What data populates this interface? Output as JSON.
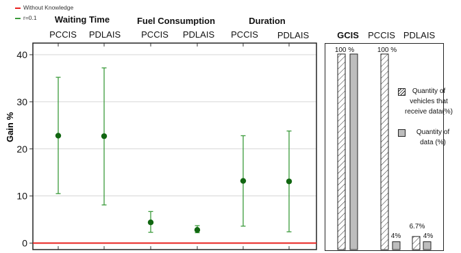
{
  "legend": [
    {
      "label": "Without Knowledge",
      "color": "#e8201e"
    },
    {
      "label": "r=0.1",
      "color": "#3a9a3a"
    }
  ],
  "groups": [
    "Waiting Time",
    "Fuel Consumption",
    "Duration"
  ],
  "chart_data": [
    {
      "type": "scatter",
      "title": "",
      "ylabel": "Gain %",
      "ylim": [
        -1,
        41
      ],
      "yticks": [
        "0",
        "10",
        "20",
        "30",
        "40"
      ],
      "categories": [
        "PCCIS",
        "PDLAIS",
        "PCCIS",
        "PDLAIS",
        "PCCIS",
        "PDLAIS"
      ],
      "category_groups": [
        "Waiting Time",
        "Waiting Time",
        "Fuel Consumption",
        "Fuel Consumption",
        "Duration",
        "Duration"
      ],
      "series": [
        {
          "name": "Without Knowledge",
          "type": "line",
          "values": [
            0,
            0,
            0,
            0,
            0,
            0
          ],
          "color": "#e8201e"
        },
        {
          "name": "r=0.1",
          "type": "errorbar",
          "color": "#3a9a3a",
          "marker_color": "#116611",
          "values": [
            22.8,
            22.7,
            4.4,
            2.8,
            13.2,
            13.1
          ],
          "lower": [
            10.5,
            8.1,
            2.3,
            2.2,
            3.6,
            2.4
          ],
          "upper": [
            35.2,
            37.2,
            6.7,
            3.7,
            22.8,
            23.8
          ]
        }
      ],
      "grid": true
    },
    {
      "type": "bar",
      "categories": [
        "GCIS",
        "PCCIS",
        "PDLAIS"
      ],
      "series": [
        {
          "name": "Quantity of vehicles that receive data(%)",
          "pattern": "hatched",
          "values": [
            100,
            100,
            6.7
          ]
        },
        {
          "name": "Quantity of data (%)",
          "color": "#bdbdbd",
          "values": [
            100,
            4,
            4
          ]
        }
      ],
      "data_labels": [
        "100 %",
        "100 %",
        "4%",
        "6.7%",
        "4%"
      ],
      "ylim": [
        0,
        100
      ]
    }
  ]
}
